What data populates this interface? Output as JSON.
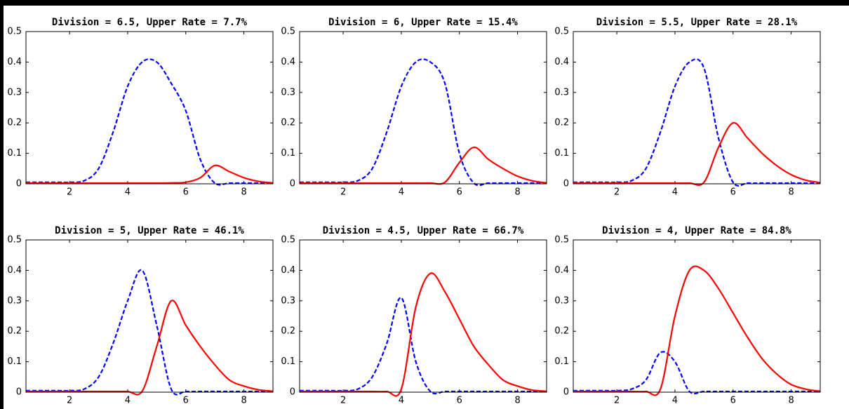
{
  "chart_data": [
    {
      "type": "line",
      "title": "Division = 6.5, Upper Rate = 7.7%",
      "x": [
        0.5,
        1,
        1.5,
        2,
        2.5,
        3,
        3.5,
        4,
        4.5,
        5,
        5.5,
        6,
        6.5,
        7,
        7.5,
        8,
        8.5,
        9
      ],
      "series": [
        {
          "color": "#0000ff",
          "style": "dashed",
          "values": [
            0.005,
            0.005,
            0.005,
            0.005,
            0.01,
            0.05,
            0.17,
            0.32,
            0.4,
            0.4,
            0.33,
            0.24,
            0.08,
            0,
            0,
            0,
            0,
            0
          ]
        },
        {
          "color": "#ff0000",
          "style": "solid",
          "values": [
            0,
            0,
            0,
            0,
            0,
            0,
            0,
            0,
            0,
            0.002,
            0.003,
            0.005,
            0.02,
            0.06,
            0.04,
            0.02,
            0.008,
            0.003
          ]
        }
      ],
      "xlim": [
        0.5,
        9
      ],
      "ylim": [
        0,
        0.5
      ],
      "xticks": [
        2,
        4,
        6,
        8
      ],
      "yticks": [
        0,
        0.1,
        0.2,
        0.3,
        0.4,
        0.5
      ]
    },
    {
      "type": "line",
      "title": "Division = 6, Upper Rate = 15.4%",
      "x": [
        0.5,
        1,
        1.5,
        2,
        2.5,
        3,
        3.5,
        4,
        4.5,
        5,
        5.5,
        6,
        6.5,
        7,
        7.5,
        8,
        8.5,
        9
      ],
      "series": [
        {
          "color": "#0000ff",
          "style": "dashed",
          "values": [
            0.005,
            0.005,
            0.005,
            0.005,
            0.01,
            0.05,
            0.17,
            0.32,
            0.4,
            0.4,
            0.33,
            0.1,
            0,
            0,
            0,
            0,
            0,
            0
          ]
        },
        {
          "color": "#ff0000",
          "style": "solid",
          "values": [
            0,
            0,
            0,
            0,
            0,
            0,
            0,
            0,
            0,
            0.002,
            0.005,
            0.07,
            0.12,
            0.08,
            0.05,
            0.025,
            0.01,
            0.003
          ]
        }
      ],
      "xlim": [
        0.5,
        9
      ],
      "ylim": [
        0,
        0.5
      ],
      "xticks": [
        2,
        4,
        6,
        8
      ],
      "yticks": [
        0,
        0.1,
        0.2,
        0.3,
        0.4,
        0.5
      ]
    },
    {
      "type": "line",
      "title": "Division = 5.5, Upper Rate = 28.1%",
      "x": [
        0.5,
        1,
        1.5,
        2,
        2.5,
        3,
        3.5,
        4,
        4.5,
        5,
        5.5,
        6,
        6.5,
        7,
        7.5,
        8,
        8.5,
        9
      ],
      "series": [
        {
          "color": "#0000ff",
          "style": "dashed",
          "values": [
            0.005,
            0.005,
            0.005,
            0.005,
            0.01,
            0.05,
            0.17,
            0.32,
            0.4,
            0.38,
            0.15,
            0.005,
            0,
            0,
            0,
            0,
            0,
            0
          ]
        },
        {
          "color": "#ff0000",
          "style": "solid",
          "values": [
            0,
            0,
            0,
            0,
            0,
            0,
            0,
            0,
            0,
            0.005,
            0.12,
            0.2,
            0.15,
            0.1,
            0.06,
            0.03,
            0.012,
            0.004
          ]
        }
      ],
      "xlim": [
        0.5,
        9
      ],
      "ylim": [
        0,
        0.5
      ],
      "xticks": [
        2,
        4,
        6,
        8
      ],
      "yticks": [
        0,
        0.1,
        0.2,
        0.3,
        0.4,
        0.5
      ]
    },
    {
      "type": "line",
      "title": "Division = 5, Upper Rate = 46.1%",
      "x": [
        0.5,
        1,
        1.5,
        2,
        2.5,
        3,
        3.5,
        4,
        4.5,
        5,
        5.5,
        6,
        6.5,
        7,
        7.5,
        8,
        8.5,
        9
      ],
      "series": [
        {
          "color": "#0000ff",
          "style": "dashed",
          "values": [
            0.005,
            0.005,
            0.005,
            0.005,
            0.01,
            0.05,
            0.16,
            0.3,
            0.4,
            0.22,
            0.01,
            0,
            0,
            0,
            0,
            0,
            0,
            0
          ]
        },
        {
          "color": "#ff0000",
          "style": "solid",
          "values": [
            0,
            0,
            0,
            0,
            0,
            0,
            0,
            0,
            0.003,
            0.15,
            0.3,
            0.22,
            0.15,
            0.09,
            0.04,
            0.02,
            0.008,
            0.003
          ]
        }
      ],
      "xlim": [
        0.5,
        9
      ],
      "ylim": [
        0,
        0.5
      ],
      "xticks": [
        2,
        4,
        6,
        8
      ],
      "yticks": [
        0,
        0.1,
        0.2,
        0.3,
        0.4,
        0.5
      ]
    },
    {
      "type": "line",
      "title": "Division = 4.5, Upper Rate = 66.7%",
      "x": [
        0.5,
        1,
        1.5,
        2,
        2.5,
        3,
        3.5,
        4,
        4.5,
        5,
        5.5,
        6,
        6.5,
        7,
        7.5,
        8,
        8.5,
        9
      ],
      "series": [
        {
          "color": "#0000ff",
          "style": "dashed",
          "values": [
            0.005,
            0.005,
            0.005,
            0.005,
            0.01,
            0.05,
            0.16,
            0.31,
            0.1,
            0,
            0,
            0,
            0,
            0,
            0,
            0,
            0,
            0
          ]
        },
        {
          "color": "#ff0000",
          "style": "solid",
          "values": [
            0,
            0,
            0,
            0,
            0,
            0,
            0,
            0.01,
            0.28,
            0.39,
            0.33,
            0.24,
            0.15,
            0.09,
            0.04,
            0.02,
            0.007,
            0.003
          ]
        }
      ],
      "xlim": [
        0.5,
        9
      ],
      "ylim": [
        0,
        0.5
      ],
      "xticks": [
        2,
        4,
        6,
        8
      ],
      "yticks": [
        0,
        0.1,
        0.2,
        0.3,
        0.4,
        0.5
      ]
    },
    {
      "type": "line",
      "title": "Division = 4, Upper Rate = 84.8%",
      "x": [
        0.5,
        1,
        1.5,
        2,
        2.5,
        3,
        3.5,
        4,
        4.5,
        5,
        5.5,
        6,
        6.5,
        7,
        7.5,
        8,
        8.5,
        9
      ],
      "series": [
        {
          "color": "#0000ff",
          "style": "dashed",
          "values": [
            0.005,
            0.005,
            0.005,
            0.005,
            0.01,
            0.04,
            0.13,
            0.1,
            0,
            0,
            0,
            0,
            0,
            0,
            0,
            0,
            0,
            0
          ]
        },
        {
          "color": "#ff0000",
          "style": "solid",
          "values": [
            0,
            0,
            0,
            0,
            0,
            0,
            0.01,
            0.25,
            0.4,
            0.4,
            0.34,
            0.26,
            0.18,
            0.11,
            0.06,
            0.025,
            0.01,
            0.003
          ]
        }
      ],
      "xlim": [
        0.5,
        9
      ],
      "ylim": [
        0,
        0.5
      ],
      "xticks": [
        2,
        4,
        6,
        8
      ],
      "yticks": [
        0,
        0.1,
        0.2,
        0.3,
        0.4,
        0.5
      ]
    }
  ]
}
